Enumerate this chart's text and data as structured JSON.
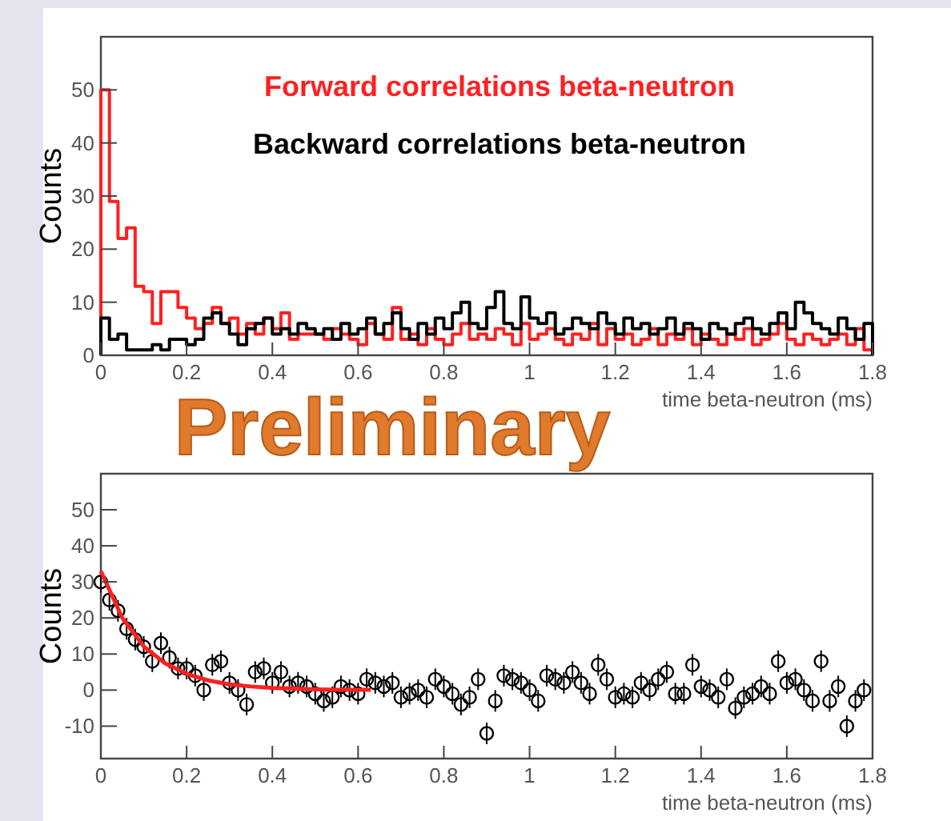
{
  "chart_data": [
    {
      "type": "histogram",
      "xlabel": "time beta-neutron (ms)",
      "ylabel": "Counts",
      "xlim": [
        0,
        1.8
      ],
      "ylim": [
        0,
        60
      ],
      "xticks": [
        0,
        0.2,
        0.4,
        0.6,
        0.8,
        1,
        1.2,
        1.4,
        1.6,
        1.8
      ],
      "yticks": [
        0,
        10,
        20,
        30,
        40,
        50
      ],
      "legend": "top",
      "annotations": [
        "Preliminary"
      ],
      "bins": [
        0,
        0.02,
        0.04,
        0.06,
        0.08,
        0.1,
        0.12,
        0.14,
        0.16,
        0.18,
        0.2,
        0.22,
        0.24,
        0.26,
        0.28,
        0.3,
        0.32,
        0.34,
        0.36,
        0.38,
        0.4,
        0.42,
        0.44,
        0.46,
        0.48,
        0.5,
        0.52,
        0.54,
        0.56,
        0.58,
        0.6,
        0.62,
        0.64,
        0.66,
        0.68,
        0.7,
        0.72,
        0.74,
        0.76,
        0.78,
        0.8,
        0.82,
        0.84,
        0.86,
        0.88,
        0.9,
        0.92,
        0.94,
        0.96,
        0.98,
        1,
        1.02,
        1.04,
        1.06,
        1.08,
        1.1,
        1.12,
        1.14,
        1.16,
        1.18,
        1.2,
        1.22,
        1.24,
        1.26,
        1.28,
        1.3,
        1.32,
        1.34,
        1.36,
        1.38,
        1.4,
        1.42,
        1.44,
        1.46,
        1.48,
        1.5,
        1.52,
        1.54,
        1.56,
        1.58,
        1.6,
        1.62,
        1.64,
        1.66,
        1.68,
        1.7,
        1.72,
        1.74,
        1.76,
        1.78,
        1.8
      ],
      "series": [
        {
          "name": "Forward correlations beta-neutron",
          "color": "#ff2020",
          "values": [
            50,
            29,
            22,
            24,
            13,
            12,
            6,
            12,
            12,
            9,
            7,
            5,
            6,
            9,
            6,
            7,
            4,
            6,
            4,
            7,
            5,
            8,
            3,
            4,
            4,
            4,
            3,
            5,
            4,
            3,
            2,
            6,
            4,
            3,
            9,
            3,
            4,
            2,
            5,
            3,
            2,
            4,
            6,
            3,
            4,
            3,
            5,
            4,
            2,
            6,
            3,
            4,
            5,
            3,
            2,
            4,
            3,
            6,
            2,
            5,
            3,
            4,
            2,
            3,
            5,
            2,
            4,
            3,
            5,
            2,
            4,
            3,
            2,
            4,
            3,
            5,
            2,
            3,
            4,
            6,
            3,
            2,
            4,
            3,
            2,
            3,
            4,
            2,
            5,
            1
          ]
        },
        {
          "name": "Backward correlations beta-neutron",
          "color": "#000000",
          "values": [
            7,
            3,
            4,
            1,
            1,
            1,
            2,
            1,
            3,
            3,
            2,
            3,
            7,
            8,
            6,
            4,
            2,
            5,
            6,
            7,
            4,
            5,
            4,
            6,
            5,
            4,
            5,
            3,
            6,
            4,
            5,
            7,
            4,
            6,
            8,
            5,
            3,
            6,
            4,
            7,
            5,
            8,
            10,
            6,
            5,
            9,
            12,
            6,
            5,
            11,
            7,
            6,
            8,
            4,
            5,
            7,
            6,
            5,
            8,
            6,
            4,
            7,
            5,
            6,
            4,
            5,
            7,
            4,
            6,
            5,
            3,
            6,
            5,
            4,
            6,
            7,
            5,
            4,
            6,
            8,
            5,
            10,
            8,
            6,
            5,
            4,
            7,
            5,
            3,
            6
          ]
        }
      ]
    },
    {
      "type": "scatter",
      "xlabel": "time beta-neutron (ms)",
      "ylabel": "Counts",
      "xlim": [
        0,
        1.8
      ],
      "ylim": [
        -19,
        60
      ],
      "xticks": [
        0,
        0.2,
        0.4,
        0.6,
        0.8,
        1,
        1.2,
        1.4,
        1.6,
        1.8
      ],
      "yticks": [
        -10,
        0,
        10,
        20,
        30,
        40,
        50
      ],
      "series": [
        {
          "marker": "circle",
          "color": "#000000",
          "x": [
            0,
            0.02,
            0.04,
            0.06,
            0.08,
            0.1,
            0.12,
            0.14,
            0.16,
            0.18,
            0.2,
            0.22,
            0.24,
            0.26,
            0.28,
            0.3,
            0.32,
            0.34,
            0.36,
            0.38,
            0.4,
            0.42,
            0.44,
            0.46,
            0.48,
            0.5,
            0.52,
            0.54,
            0.56,
            0.58,
            0.6,
            0.62,
            0.64,
            0.66,
            0.68,
            0.7,
            0.72,
            0.74,
            0.76,
            0.78,
            0.8,
            0.82,
            0.84,
            0.86,
            0.88,
            0.9,
            0.92,
            0.94,
            0.96,
            0.98,
            1,
            1.02,
            1.04,
            1.06,
            1.08,
            1.1,
            1.12,
            1.14,
            1.16,
            1.18,
            1.2,
            1.22,
            1.24,
            1.26,
            1.28,
            1.3,
            1.32,
            1.34,
            1.36,
            1.38,
            1.4,
            1.42,
            1.44,
            1.46,
            1.48,
            1.5,
            1.52,
            1.54,
            1.56,
            1.58,
            1.6,
            1.62,
            1.64,
            1.66,
            1.68,
            1.7,
            1.72,
            1.74,
            1.76,
            1.78
          ],
          "values": [
            30,
            25,
            22,
            17,
            14,
            12,
            8,
            13,
            9,
            6,
            6,
            4,
            0,
            7,
            8,
            2,
            0,
            -4,
            5,
            6,
            2,
            5,
            1,
            2,
            1,
            -1,
            -3,
            -2,
            1,
            0,
            -1,
            3,
            2,
            1,
            2,
            -2,
            -1,
            0,
            -2,
            3,
            1,
            -1,
            -4,
            -2,
            3,
            -12,
            -3,
            4,
            3,
            2,
            0,
            -3,
            4,
            3,
            2,
            5,
            2,
            -1,
            7,
            3,
            -2,
            -1,
            -2,
            2,
            0,
            3,
            5,
            -1,
            -1,
            7,
            1,
            0,
            -2,
            3,
            -5,
            -2,
            -1,
            1,
            -1,
            8,
            2,
            3,
            0,
            -3,
            8,
            -3,
            1,
            -10,
            -3,
            0
          ],
          "errors": [
            3,
            3,
            3,
            3,
            3,
            3,
            3,
            3,
            3,
            3,
            3,
            3,
            3,
            3,
            3,
            3,
            3,
            3,
            3,
            3,
            3,
            3,
            3,
            3,
            3,
            3,
            3,
            3,
            3,
            3,
            3,
            3,
            3,
            3,
            3,
            3,
            3,
            3,
            3,
            3,
            3,
            3,
            3,
            3,
            3,
            3,
            3,
            3,
            3,
            3,
            3,
            3,
            3,
            3,
            3,
            3,
            3,
            3,
            3,
            3,
            3,
            3,
            3,
            3,
            3,
            3,
            3,
            3,
            3,
            3,
            3,
            3,
            3,
            3,
            3,
            3,
            3,
            3,
            3,
            3,
            3,
            3,
            3,
            3,
            3,
            3,
            3,
            3,
            3,
            3
          ]
        },
        {
          "type": "line",
          "color": "#ff2020",
          "x": [
            0,
            0.05,
            0.1,
            0.15,
            0.2,
            0.25,
            0.3,
            0.35,
            0.4,
            0.45,
            0.5,
            0.55,
            0.6,
            0.63
          ],
          "values": [
            33,
            20,
            12.1,
            7.4,
            4.5,
            2.7,
            1.6,
            1,
            0.6,
            0.4,
            0.2,
            0.1,
            0.1,
            0.1
          ]
        }
      ]
    }
  ]
}
